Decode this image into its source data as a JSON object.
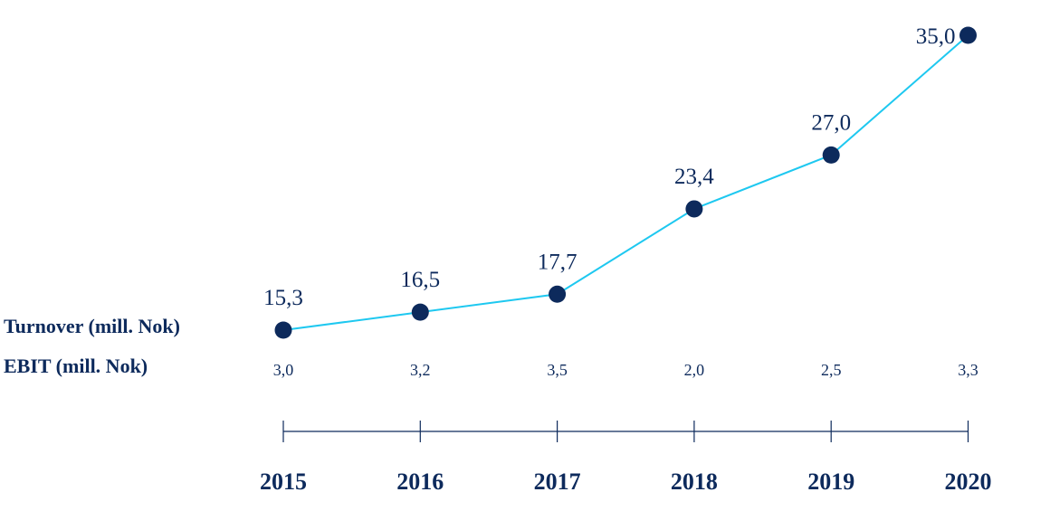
{
  "row_labels": {
    "turnover": "Turnover (mill. Nok)",
    "ebit": "EBIT (mill. Nok)"
  },
  "colors": {
    "line": "#1ec8f0",
    "marker": "#0d2a5c",
    "text": "#0d2a5c",
    "axis": "#0d2a5c"
  },
  "chart_data": {
    "type": "line",
    "categories": [
      "2015",
      "2016",
      "2017",
      "2018",
      "2019",
      "2020"
    ],
    "series": [
      {
        "name": "Turnover (mill. Nok)",
        "values": [
          15.3,
          16.5,
          17.7,
          23.4,
          27.0,
          35.0
        ],
        "labels": [
          "15,3",
          "16,5",
          "17,7",
          "23,4",
          "27,0",
          "35,0"
        ]
      },
      {
        "name": "EBIT (mill. Nok)",
        "values": [
          3.0,
          3.2,
          3.5,
          2.0,
          2.5,
          3.3
        ],
        "labels": [
          "3,0",
          "3,2",
          "3,5",
          "2,0",
          "2,5",
          "3,3"
        ]
      }
    ],
    "title": "",
    "xlabel": "",
    "ylabel": "",
    "ylim": [
      15.3,
      35.0
    ],
    "grid": false,
    "legend": "none"
  }
}
